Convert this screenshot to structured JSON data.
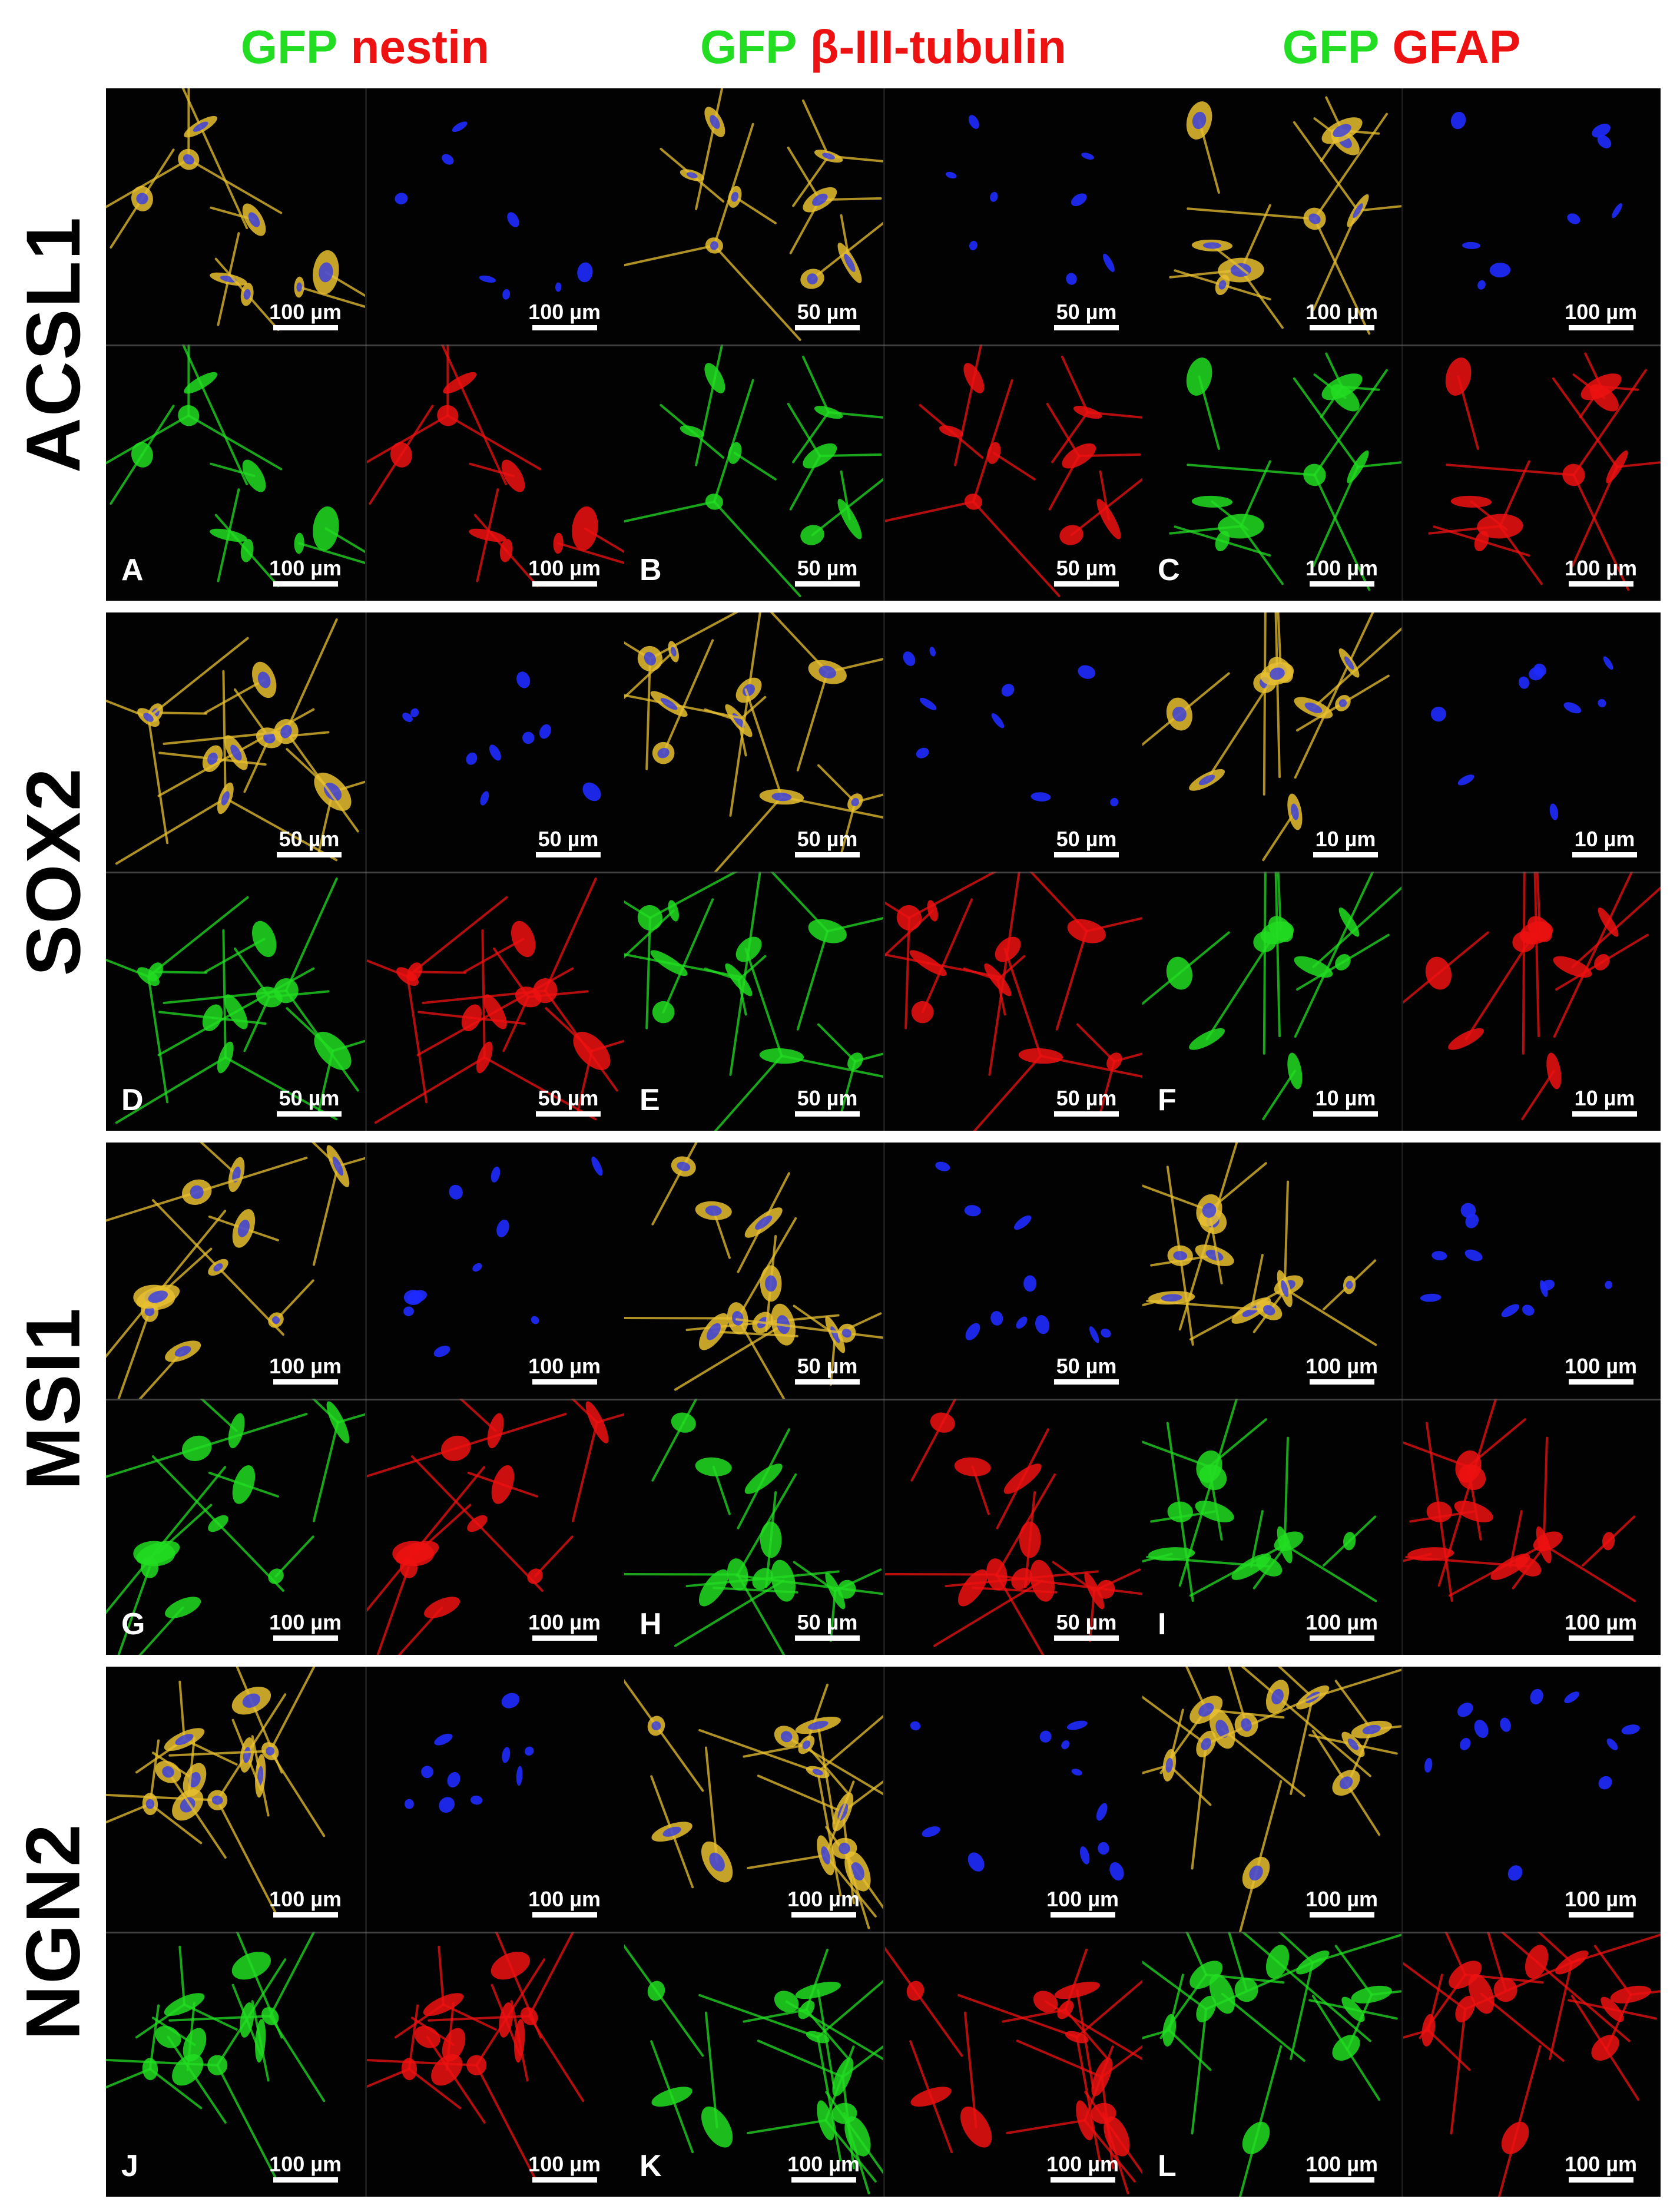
{
  "columns": [
    {
      "green": "GFP",
      "red": "nestin"
    },
    {
      "green": "GFP",
      "red": "β-III-tubulin"
    },
    {
      "green": "GFP",
      "red": "GFAP"
    }
  ],
  "rows": [
    {
      "label": "ACSL1"
    },
    {
      "label": "SOX2"
    },
    {
      "label": "MSI1"
    },
    {
      "label": "NGN2"
    }
  ],
  "panels": [
    {
      "letter": "A",
      "scales": [
        "100 µm",
        "100 µm",
        "100 µm",
        "100 µm"
      ]
    },
    {
      "letter": "B",
      "scales": [
        "50 µm",
        "50 µm",
        "50 µm",
        "50 µm"
      ]
    },
    {
      "letter": "C",
      "scales": [
        "100 µm",
        "100 µm",
        "100 µm",
        "100 µm"
      ]
    },
    {
      "letter": "D",
      "scales": [
        "50 µm",
        "50 µm",
        "50 µm",
        "50 µm"
      ]
    },
    {
      "letter": "E",
      "scales": [
        "50 µm",
        "50 µm",
        "50 µm",
        "50 µm"
      ]
    },
    {
      "letter": "F",
      "scales": [
        "10 µm",
        "10 µm",
        "10 µm",
        "10 µm"
      ]
    },
    {
      "letter": "G",
      "scales": [
        "100 µm",
        "100 µm",
        "100 µm",
        "100 µm"
      ]
    },
    {
      "letter": "H",
      "scales": [
        "50 µm",
        "50 µm",
        "50 µm",
        "50 µm"
      ]
    },
    {
      "letter": "I",
      "scales": [
        "100 µm",
        "100 µm",
        "100 µm",
        "100 µm"
      ]
    },
    {
      "letter": "J",
      "scales": [
        "100 µm",
        "100 µm",
        "100 µm",
        "100 µm"
      ]
    },
    {
      "letter": "K",
      "scales": [
        "100 µm",
        "100 µm",
        "100 µm",
        "100 µm"
      ]
    },
    {
      "letter": "L",
      "scales": [
        "100 µm",
        "100 µm",
        "100 µm",
        "100 µm"
      ]
    }
  ],
  "colors": {
    "gfp": "#22dd22",
    "marker": "#ee1111",
    "dapi": "#1f2bff",
    "merge": "#e8c030",
    "background": "#000000"
  }
}
